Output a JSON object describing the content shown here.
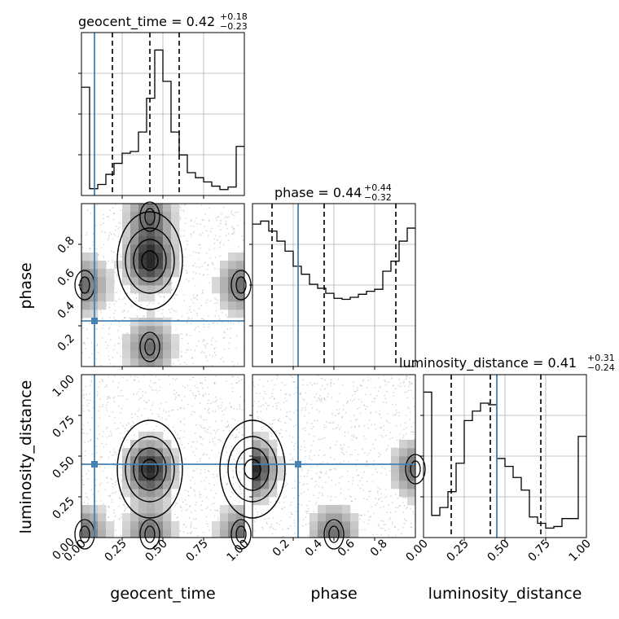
{
  "chart_data": {
    "type": "corner",
    "parameters": [
      "geocent_time",
      "phase",
      "luminosity_distance"
    ],
    "ranges": {
      "geocent_time": [
        0.0,
        1.0
      ],
      "phase": [
        0.0,
        1.0
      ],
      "luminosity_distance": [
        0.0,
        1.0
      ]
    },
    "injection": {
      "geocent_time": 0.08,
      "phase": 0.28,
      "luminosity_distance": 0.45
    },
    "colors": {
      "injection": "#4682b4",
      "hist": "#000000",
      "grid": "#b0b0b0"
    },
    "grid": true,
    "titles": {
      "geocent_time": {
        "label": "geocent_time = 0.42",
        "sup": "+0.18",
        "sub": "−0.23"
      },
      "phase": {
        "label": "phase = 0.44",
        "sup": "+0.44",
        "sub": "−0.32"
      },
      "luminosity_distance": {
        "label": "luminosity_distance = 0.41",
        "sup": "+0.31",
        "sub": "−0.24"
      }
    },
    "axis_labels": {
      "x": [
        "geocent_time",
        "phase",
        "luminosity_distance"
      ],
      "y": [
        "phase",
        "luminosity_distance"
      ]
    },
    "tick_labels": {
      "geocent_time_x": [
        "0.00",
        "0.25",
        "0.50",
        "0.75",
        "1.00"
      ],
      "phase_x": [
        "0.2",
        "0.4",
        "0.6",
        "0.8"
      ],
      "luminosity_distance_x": [
        "0.00",
        "0.25",
        "0.50",
        "0.75",
        "1.00"
      ],
      "phase_y": [
        "0.2",
        "0.4",
        "0.6",
        "0.8"
      ],
      "luminosity_distance_y": [
        "0.00",
        "0.25",
        "0.50",
        "0.75",
        "1.00"
      ]
    },
    "marginals": [
      {
        "parameter": "geocent_time",
        "bin_edges": [
          0.0,
          0.05,
          0.1,
          0.15,
          0.2,
          0.25,
          0.3,
          0.35,
          0.4,
          0.45,
          0.5,
          0.55,
          0.6,
          0.65,
          0.7,
          0.75,
          0.8,
          0.85,
          0.9,
          0.95,
          1.0
        ],
        "counts": [
          1.28,
          0.08,
          0.13,
          0.25,
          0.38,
          0.5,
          0.52,
          0.75,
          1.15,
          1.72,
          1.35,
          0.75,
          0.48,
          0.27,
          0.21,
          0.16,
          0.11,
          0.07,
          0.1,
          0.58
        ],
        "quantiles": [
          0.19,
          0.42,
          0.6
        ]
      },
      {
        "parameter": "phase",
        "bin_edges": [
          0.0,
          0.05,
          0.1,
          0.15,
          0.2,
          0.25,
          0.3,
          0.35,
          0.4,
          0.45,
          0.5,
          0.55,
          0.6,
          0.65,
          0.7,
          0.75,
          0.8,
          0.85,
          0.9,
          0.95,
          1.0
        ],
        "counts": [
          1.42,
          1.45,
          1.35,
          1.25,
          1.15,
          1.0,
          0.92,
          0.82,
          0.78,
          0.73,
          0.68,
          0.67,
          0.69,
          0.72,
          0.75,
          0.77,
          0.95,
          1.05,
          1.25,
          1.38
        ],
        "quantiles": [
          0.12,
          0.44,
          0.88
        ]
      },
      {
        "parameter": "luminosity_distance",
        "bin_edges": [
          0.0,
          0.05,
          0.1,
          0.15,
          0.2,
          0.25,
          0.3,
          0.35,
          0.4,
          0.45,
          0.5,
          0.55,
          0.6,
          0.65,
          0.7,
          0.75,
          0.8,
          0.85,
          0.9,
          0.95,
          1.0
        ],
        "counts": [
          0.92,
          0.14,
          0.19,
          0.29,
          0.47,
          0.74,
          0.8,
          0.85,
          0.84,
          0.5,
          0.45,
          0.38,
          0.3,
          0.13,
          0.09,
          0.06,
          0.07,
          0.12,
          0.12,
          0.64
        ],
        "quantiles": [
          0.17,
          0.41,
          0.72
        ]
      }
    ],
    "joint": [
      {
        "x": "geocent_time",
        "y": "phase",
        "dens_min": [
          0.42,
          0.65
        ],
        "secondary_modes": [
          [
            0.42,
            0.92
          ],
          [
            0.42,
            0.12
          ],
          [
            0.02,
            0.5
          ],
          [
            0.98,
            0.5
          ]
        ]
      },
      {
        "x": "geocent_time",
        "y": "luminosity_distance",
        "dens_min": [
          0.42,
          0.42
        ],
        "secondary_modes": [
          [
            0.02,
            0.02
          ],
          [
            0.98,
            0.02
          ],
          [
            0.42,
            0.02
          ]
        ]
      },
      {
        "x": "phase",
        "y": "luminosity_distance",
        "dens_min": [
          0.0,
          0.42
        ],
        "secondary_modes": [
          [
            1.0,
            0.42
          ],
          [
            0.5,
            0.02
          ]
        ]
      }
    ]
  }
}
